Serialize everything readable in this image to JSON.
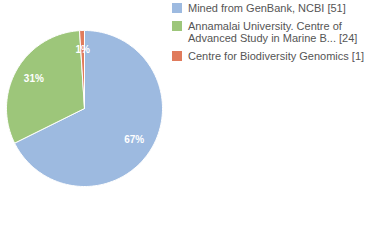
{
  "chart_data": {
    "type": "pie",
    "categories": [
      "Mined from GenBank, NCBI [51]",
      "Annamalai University. Centre of Advanced Study in Marine B... [24]",
      "Centre for Biodiversity Genomics [1]"
    ],
    "values": [
      67,
      31,
      1
    ],
    "value_labels": [
      "67%",
      "31%",
      "1%"
    ],
    "colors": [
      "#9dbae0",
      "#9dc67a",
      "#e07b5c"
    ],
    "data_labels": true,
    "legend": "right"
  }
}
